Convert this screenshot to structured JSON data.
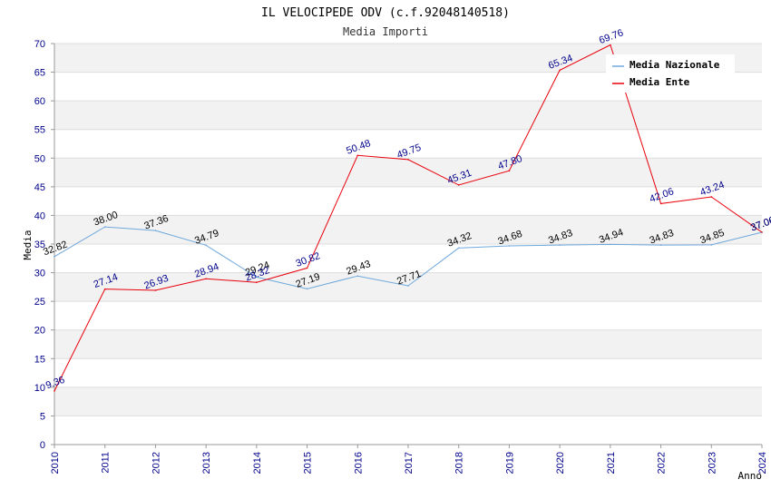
{
  "chart_data": {
    "type": "line",
    "title": "IL VELOCIPEDE ODV (c.f.92048140518)",
    "subtitle": "Media Importi",
    "xlabel": "Anno",
    "ylabel": "Media",
    "ylim": [
      0,
      70
    ],
    "yticks": [
      "0",
      "5",
      "10",
      "15",
      "20",
      "25",
      "30",
      "35",
      "40",
      "45",
      "50",
      "55",
      "60",
      "65",
      "70"
    ],
    "categories": [
      "2010",
      "2011",
      "2012",
      "2013",
      "2014",
      "2015",
      "2016",
      "2017",
      "2018",
      "2019",
      "2020",
      "2021",
      "2022",
      "2023",
      "2024"
    ],
    "legend_position": "top-right",
    "series": [
      {
        "name": "Media Nazionale",
        "color": "#6fa8dc",
        "label_color": "#000000",
        "values": [
          32.82,
          38.0,
          37.36,
          34.79,
          29.24,
          27.19,
          29.43,
          27.71,
          34.32,
          34.68,
          34.83,
          34.94,
          34.83,
          34.85,
          37.06
        ],
        "labels": [
          "32.82",
          "38.00",
          "37.36",
          "34.79",
          "29.24",
          "27.19",
          "29.43",
          "27.71",
          "34.32",
          "34.68",
          "34.83",
          "34.94",
          "34.83",
          "34.85",
          "37.06"
        ]
      },
      {
        "name": "Media Ente",
        "color": "#e8000b",
        "label_color": "#00008b",
        "values": [
          9.36,
          27.14,
          26.93,
          28.94,
          28.32,
          30.82,
          50.48,
          49.75,
          45.31,
          47.8,
          65.34,
          69.76,
          42.06,
          43.24,
          37.06
        ],
        "labels": [
          "9.36",
          "27.14",
          "26.93",
          "28.94",
          "28.32",
          "30.82",
          "50.48",
          "49.75",
          "45.31",
          "47.80",
          "65.34",
          "69.76",
          "42.06",
          "43.24",
          "37.06"
        ]
      }
    ]
  }
}
